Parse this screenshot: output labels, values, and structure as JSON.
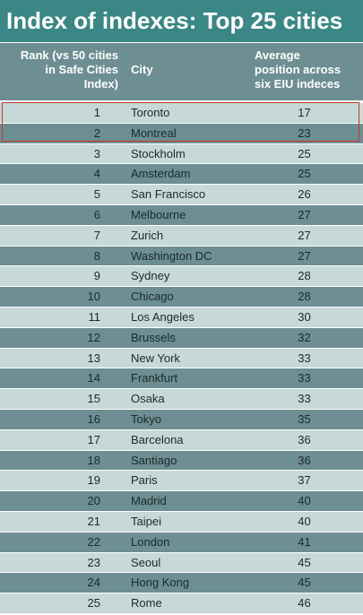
{
  "title": "Index of indexes: Top 25 cities",
  "headers": {
    "rank": "Rank (vs 50 cities\nin Safe Cities\nIndex)",
    "city": "City",
    "avg": "Average\nposition across\nsix EIU indeces"
  },
  "colors": {
    "title_bg": "#3a8785",
    "row_light": "#c7d8d9",
    "row_dark": "#6d8e92",
    "highlight": "#c0392b"
  },
  "rows": [
    {
      "rank": "1",
      "city": "Toronto",
      "avg": "17"
    },
    {
      "rank": "2",
      "city": "Montreal",
      "avg": "23"
    },
    {
      "rank": "3",
      "city": "Stockholm",
      "avg": "25"
    },
    {
      "rank": "4",
      "city": "Amsterdam",
      "avg": "25"
    },
    {
      "rank": "5",
      "city": "San Francisco",
      "avg": "26"
    },
    {
      "rank": "6",
      "city": "Melbourne",
      "avg": "27"
    },
    {
      "rank": "7",
      "city": "Zurich",
      "avg": "27"
    },
    {
      "rank": "8",
      "city": "Washington DC",
      "avg": "27"
    },
    {
      "rank": "9",
      "city": "Sydney",
      "avg": "28"
    },
    {
      "rank": "10",
      "city": "Chicago",
      "avg": "28"
    },
    {
      "rank": "11",
      "city": "Los Angeles",
      "avg": "30"
    },
    {
      "rank": "12",
      "city": "Brussels",
      "avg": "32"
    },
    {
      "rank": "13",
      "city": "New York",
      "avg": "33"
    },
    {
      "rank": "14",
      "city": "Frankfurt",
      "avg": "33"
    },
    {
      "rank": "15",
      "city": "Osaka",
      "avg": "33"
    },
    {
      "rank": "16",
      "city": "Tokyo",
      "avg": "35"
    },
    {
      "rank": "17",
      "city": "Barcelona",
      "avg": "36"
    },
    {
      "rank": "18",
      "city": "Santiago",
      "avg": "36"
    },
    {
      "rank": "19",
      "city": "Paris",
      "avg": "37"
    },
    {
      "rank": "20",
      "city": "Madrid",
      "avg": "40"
    },
    {
      "rank": "21",
      "city": "Taipei",
      "avg": "40"
    },
    {
      "rank": "22",
      "city": "London",
      "avg": "41"
    },
    {
      "rank": "23",
      "city": "Seoul",
      "avg": "45"
    },
    {
      "rank": "24",
      "city": "Hong Kong",
      "avg": "45"
    },
    {
      "rank": "25",
      "city": "Rome",
      "avg": "46"
    }
  ]
}
